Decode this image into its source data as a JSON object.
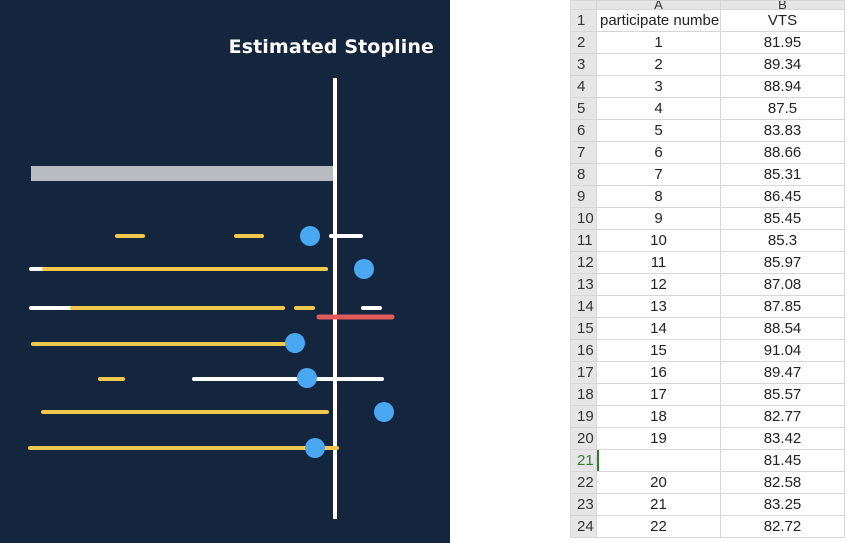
{
  "task": {
    "title": "Estimated Stopline"
  },
  "sheet": {
    "columns": [
      "A",
      "B"
    ],
    "rows": [
      {
        "row": "1",
        "a": "participate number",
        "b": "VTS"
      },
      {
        "row": "2",
        "a": "1",
        "b": "81.95"
      },
      {
        "row": "3",
        "a": "2",
        "b": "89.34"
      },
      {
        "row": "4",
        "a": "3",
        "b": "88.94"
      },
      {
        "row": "5",
        "a": "4",
        "b": "87.5"
      },
      {
        "row": "6",
        "a": "5",
        "b": "83.83"
      },
      {
        "row": "7",
        "a": "6",
        "b": "88.66"
      },
      {
        "row": "8",
        "a": "7",
        "b": "85.31"
      },
      {
        "row": "9",
        "a": "8",
        "b": "86.45"
      },
      {
        "row": "10",
        "a": "9",
        "b": "85.45"
      },
      {
        "row": "11",
        "a": "10",
        "b": "85.3"
      },
      {
        "row": "12",
        "a": "11",
        "b": "85.97"
      },
      {
        "row": "13",
        "a": "12",
        "b": "87.08"
      },
      {
        "row": "14",
        "a": "13",
        "b": "87.85"
      },
      {
        "row": "15",
        "a": "14",
        "b": "88.54"
      },
      {
        "row": "16",
        "a": "15",
        "b": "91.04"
      },
      {
        "row": "17",
        "a": "16",
        "b": "89.47"
      },
      {
        "row": "18",
        "a": "17",
        "b": "85.57"
      },
      {
        "row": "19",
        "a": "18",
        "b": "82.77"
      },
      {
        "row": "20",
        "a": "19",
        "b": "83.42"
      },
      {
        "row": "21",
        "a": "",
        "b": "81.45"
      },
      {
        "row": "22",
        "a": "20",
        "b": "82.58"
      },
      {
        "row": "23",
        "a": "21",
        "b": "83.25"
      },
      {
        "row": "24",
        "a": "22",
        "b": "82.72"
      }
    ],
    "active_row": "21"
  },
  "colors": {
    "panel_bg": "#13263d",
    "yellow": "#f2c94c",
    "white": "#ffffff",
    "blue": "#4aa8f2",
    "red": "#e05a5a",
    "gray_bar": "#b8bcc0"
  }
}
